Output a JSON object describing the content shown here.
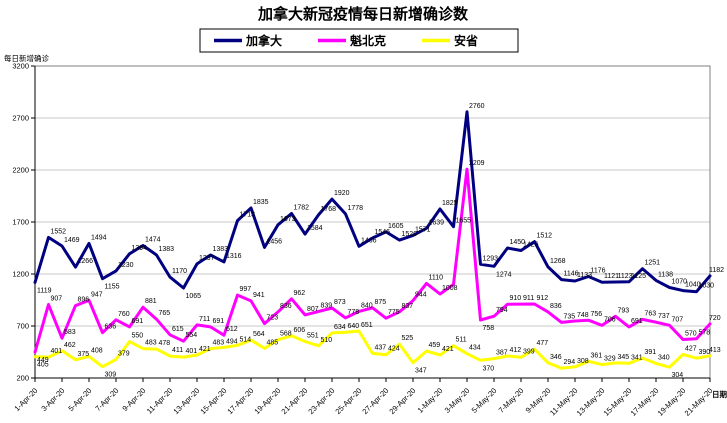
{
  "page": {
    "background": "#ffffff"
  },
  "chart_data": {
    "type": "line",
    "title": "加拿大新冠疫情每日新增确诊数",
    "y_axis_title": "每日新增确诊",
    "x_axis_title": "日期",
    "ylim": [
      200,
      3200
    ],
    "y_ticks": [
      3200,
      2700,
      2200,
      1700,
      1200,
      700,
      200
    ],
    "grid": true,
    "legend_position": "top",
    "x_tick_every": 2,
    "gridline_color": "#c9c9c9",
    "border_color": "#808080",
    "x": [
      "1-Apr-20",
      "2-Apr-20",
      "3-Apr-20",
      "4-Apr-20",
      "5-Apr-20",
      "6-Apr-20",
      "7-Apr-20",
      "8-Apr-20",
      "9-Apr-20",
      "10-Apr-20",
      "11-Apr-20",
      "12-Apr-20",
      "13-Apr-20",
      "14-Apr-20",
      "15-Apr-20",
      "16-Apr-20",
      "17-Apr-20",
      "18-Apr-20",
      "19-Apr-20",
      "20-Apr-20",
      "21-Apr-20",
      "22-Apr-20",
      "23-Apr-20",
      "24-Apr-20",
      "25-Apr-20",
      "26-Apr-20",
      "27-Apr-20",
      "28-Apr-20",
      "29-Apr-20",
      "30-Apr-20",
      "1-May-20",
      "2-May-20",
      "3-May-20",
      "4-May-20",
      "5-May-20",
      "6-May-20",
      "7-May-20",
      "8-May-20",
      "9-May-20",
      "10-May-20",
      "11-May-20",
      "12-May-20",
      "13-May-20",
      "14-May-20",
      "15-May-20",
      "16-May-20",
      "17-May-20",
      "18-May-20",
      "19-May-20",
      "20-May-20",
      "21-May-20"
    ],
    "series": [
      {
        "name": "加拿大",
        "color": "#000080",
        "values": [
          1119,
          1552,
          1469,
          1266,
          1494,
          1155,
          1230,
          1394,
          1474,
          1383,
          1170,
          1065,
          1297,
          1383,
          1316,
          1713,
          1835,
          1456,
          1673,
          1782,
          1584,
          1768,
          1920,
          1778,
          1466,
          1546,
          1605,
          1526,
          1571,
          1639,
          1825,
          1655,
          2760,
          1293,
          1274,
          1450,
          1426,
          1512,
          1268,
          1146,
          1133,
          1176,
          1121,
          1123,
          1125,
          1251,
          1138,
          1070,
          1040,
          1030,
          1182
        ],
        "labels_below": [
          0,
          5,
          11,
          34
        ],
        "label_skip": []
      },
      {
        "name": "魁北克",
        "color": "#FF00FF",
        "values": [
          449,
          907,
          583,
          896,
          947,
          636,
          760,
          691,
          881,
          765,
          615,
          554,
          711,
          691,
          612,
          997,
          941,
          723,
          836,
          962,
          807,
          839,
          873,
          778,
          840,
          875,
          775,
          837,
          944,
          1110,
          1008,
          1100,
          2209,
          758,
          794,
          910,
          911,
          912,
          836,
          735,
          748,
          756,
          706,
          793,
          691,
          763,
          737,
          707,
          570,
          578,
          720
        ],
        "labels_below": [
          0,
          33
        ],
        "label_skip": [
          31
        ]
      },
      {
        "name": "安省",
        "color": "#FFFF00",
        "values": [
          405,
          401,
          462,
          375,
          408,
          309,
          379,
          550,
          483,
          478,
          411,
          401,
          421,
          483,
          494,
          514,
          564,
          485,
          568,
          606,
          551,
          510,
          634,
          640,
          651,
          437,
          424,
          525,
          347,
          459,
          421,
          511,
          434,
          370,
          387,
          412,
          399,
          477,
          346,
          294,
          308,
          361,
          329,
          345,
          341,
          391,
          340,
          304,
          427,
          390,
          413
        ],
        "labels_below": [
          0,
          5,
          28,
          33,
          47
        ],
        "label_skip": []
      }
    ]
  }
}
